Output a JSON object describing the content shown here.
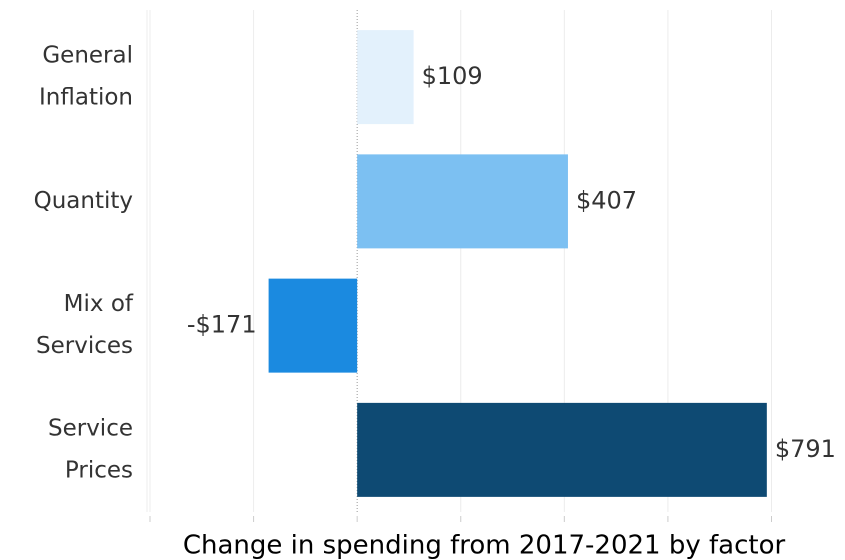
{
  "chart_data": {
    "type": "bar",
    "orientation": "horizontal",
    "title": "Change in spending from 2017-2021 by factor",
    "categories": [
      [
        "General",
        "Inflation"
      ],
      [
        "Quantity"
      ],
      [
        "Mix of",
        "Services"
      ],
      [
        "Service",
        "Prices"
      ]
    ],
    "values": [
      109,
      407,
      -171,
      791
    ],
    "value_labels": [
      "$109",
      "$407",
      "-$171",
      "$791"
    ],
    "colors": [
      "#e3f1fc",
      "#7cc0f2",
      "#1b8ae0",
      "#0e4a73"
    ],
    "xlim": [
      -400,
      940
    ],
    "xticks": [
      -400,
      -200,
      0,
      200,
      400,
      600,
      800
    ],
    "grid": true
  }
}
